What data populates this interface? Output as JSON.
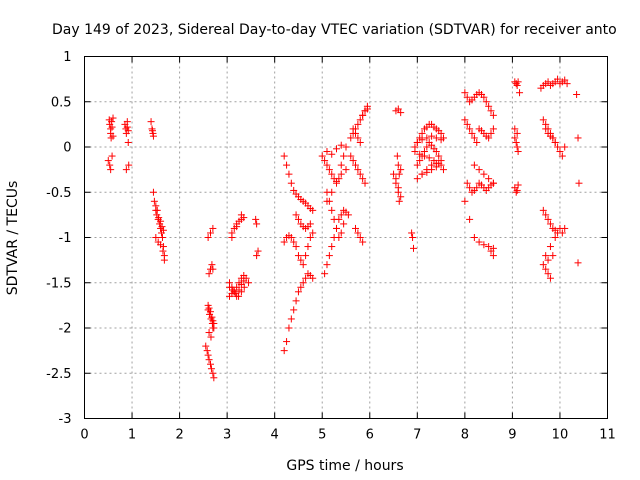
{
  "chart_data": {
    "type": "scatter",
    "title": "Day 149 of 2023, Sidereal Day-to-day VTEC variation (SDTVAR) for receiver anto",
    "xlabel": "GPS time / hours",
    "ylabel": "SDTVAR / TECUs",
    "xlim": [
      0,
      11
    ],
    "ylim": [
      -3,
      1
    ],
    "xticks": [
      0,
      1,
      2,
      3,
      4,
      5,
      6,
      7,
      8,
      9,
      10,
      11
    ],
    "yticks": [
      -3,
      -2.5,
      -2,
      -1.5,
      -1,
      -0.5,
      0,
      0.5,
      1
    ],
    "grid": true,
    "marker": "+",
    "color": "#ff0000",
    "series": [
      {
        "name": "SDTVAR",
        "x": [
          0.52,
          0.53,
          0.55,
          0.55,
          0.56,
          0.57,
          0.58,
          0.6,
          0.6,
          0.5,
          0.53,
          0.55,
          0.58,
          0.85,
          0.87,
          0.88,
          0.9,
          0.92,
          0.93,
          0.88,
          0.9,
          0.92,
          1.4,
          1.42,
          1.44,
          1.43,
          1.45,
          1.45,
          1.47,
          1.5,
          1.52,
          1.55,
          1.58,
          1.6,
          1.62,
          1.64,
          1.66,
          1.68,
          1.5,
          1.53,
          1.56,
          1.6,
          1.63,
          1.66,
          1.68,
          1.5,
          1.55,
          1.6,
          1.65,
          2.55,
          2.58,
          2.6,
          2.62,
          2.65,
          2.67,
          2.7,
          2.72,
          2.6,
          2.63,
          2.66,
          2.69,
          2.72,
          2.6,
          2.62,
          2.65,
          2.68,
          2.7,
          2.62,
          2.65,
          2.68,
          2.7,
          2.6,
          2.65,
          2.7,
          2.62,
          2.66,
          2.7,
          2.72,
          3.05,
          3.1,
          3.15,
          3.2,
          3.25,
          3.3,
          3.35,
          3.4,
          3.45,
          3.1,
          3.15,
          3.2,
          3.25,
          3.3,
          3.35,
          3.05,
          3.1,
          3.15,
          3.2,
          3.25,
          3.3,
          3.35,
          3.1,
          3.2,
          3.3,
          3.05,
          3.12,
          3.18,
          3.24,
          3.3,
          3.36,
          3.6,
          3.62,
          3.65,
          3.62,
          4.2,
          4.25,
          4.3,
          4.35,
          4.4,
          4.45,
          4.5,
          4.55,
          4.6,
          4.65,
          4.7,
          4.75,
          4.8,
          4.2,
          4.25,
          4.3,
          4.35,
          4.4,
          4.45,
          4.5,
          4.55,
          4.6,
          4.65,
          4.7,
          4.75,
          4.8,
          4.2,
          4.25,
          4.3,
          4.35,
          4.4,
          4.45,
          4.5,
          4.55,
          4.6,
          4.65,
          4.7,
          4.75,
          4.8,
          4.45,
          4.5,
          4.55,
          4.6,
          4.65,
          4.7,
          4.75,
          5.0,
          5.05,
          5.1,
          5.15,
          5.2,
          5.25,
          5.3,
          5.35,
          5.4,
          5.45,
          5.5,
          5.1,
          5.15,
          5.2,
          5.25,
          5.3,
          5.35,
          5.4,
          5.45,
          5.05,
          5.1,
          5.15,
          5.2,
          5.25,
          5.3,
          5.35,
          5.4,
          5.45,
          5.5,
          5.55,
          5.1,
          5.2,
          5.3,
          5.4,
          5.5,
          5.1,
          5.2,
          5.3,
          5.4,
          5.5,
          5.6,
          5.65,
          5.7,
          5.75,
          5.8,
          5.85,
          5.9,
          5.95,
          5.6,
          5.65,
          5.7,
          5.75,
          5.8,
          5.85,
          5.9,
          5.65,
          5.7,
          5.75,
          5.8,
          5.7,
          5.75,
          5.8,
          5.85,
          5.85,
          5.9,
          5.95,
          6.5,
          6.55,
          6.6,
          6.62,
          6.65,
          6.55,
          6.6,
          6.65,
          6.58,
          6.6,
          6.62,
          6.55,
          6.6,
          6.65,
          6.88,
          6.9,
          6.92,
          6.95,
          7.0,
          7.05,
          7.1,
          7.15,
          7.2,
          7.25,
          7.3,
          7.35,
          7.4,
          7.45,
          7.5,
          7.55,
          7.0,
          7.05,
          7.1,
          7.15,
          7.2,
          7.25,
          7.3,
          7.35,
          7.4,
          7.45,
          7.5,
          7.0,
          7.1,
          7.2,
          7.3,
          7.4,
          7.5,
          7.0,
          7.1,
          7.2,
          7.3,
          7.4,
          7.5,
          6.95,
          7.05,
          7.15,
          7.25,
          7.35,
          7.45,
          7.55,
          7.1,
          7.2,
          7.3,
          7.4,
          8.0,
          8.05,
          8.1,
          8.15,
          8.2,
          8.25,
          8.3,
          8.35,
          8.4,
          8.45,
          8.5,
          8.55,
          8.6,
          8.0,
          8.05,
          8.1,
          8.15,
          8.2,
          8.25,
          8.3,
          8.35,
          8.4,
          8.45,
          8.5,
          8.55,
          8.6,
          8.05,
          8.1,
          8.15,
          8.2,
          8.25,
          8.3,
          8.35,
          8.4,
          8.45,
          8.5,
          8.55,
          8.6,
          8.0,
          8.1,
          8.2,
          8.3,
          8.4,
          8.5,
          8.6,
          8.2,
          8.3,
          8.4,
          8.5,
          8.6,
          8.55,
          8.6,
          9.05,
          9.08,
          9.1,
          9.12,
          9.15,
          9.05,
          9.08,
          9.1,
          9.12,
          9.05,
          9.08,
          9.1,
          9.12,
          9.05,
          9.1,
          9.6,
          9.65,
          9.7,
          9.75,
          9.8,
          9.85,
          9.9,
          9.95,
          10.0,
          10.05,
          10.1,
          10.15,
          9.65,
          9.7,
          9.75,
          9.8,
          9.85,
          9.9,
          9.95,
          10.0,
          10.05,
          10.1,
          9.65,
          9.7,
          9.75,
          9.8,
          9.85,
          9.9,
          9.95,
          10.0,
          10.05,
          10.1,
          9.65,
          9.7,
          9.75,
          9.8,
          9.85,
          9.9,
          9.7,
          9.75,
          9.8,
          9.85,
          9.9,
          9.7,
          9.75,
          9.8,
          10.35,
          10.38,
          10.4,
          10.38
        ],
        "y": [
          0.3,
          0.25,
          0.2,
          0.15,
          0.1,
          0.28,
          0.22,
          0.12,
          0.32,
          -0.15,
          -0.2,
          -0.25,
          -0.1,
          0.25,
          0.2,
          0.15,
          0.28,
          0.05,
          -0.2,
          -0.25,
          0.22,
          0.18,
          0.28,
          0.2,
          0.15,
          0.18,
          0.12,
          -0.5,
          -0.6,
          -0.7,
          -0.75,
          -0.8,
          -0.85,
          -0.9,
          -0.95,
          -1.0,
          -1.1,
          -1.25,
          -0.65,
          -0.7,
          -0.78,
          -0.82,
          -0.88,
          -0.92,
          -1.2,
          -1.0,
          -1.05,
          -1.08,
          -1.15,
          -2.2,
          -2.25,
          -2.3,
          -2.35,
          -2.4,
          -2.45,
          -2.5,
          -2.55,
          -1.8,
          -1.85,
          -1.9,
          -1.95,
          -2.0,
          -1.75,
          -1.78,
          -1.82,
          -1.88,
          -1.92,
          -1.4,
          -1.35,
          -1.3,
          -1.35,
          -1.0,
          -0.95,
          -0.9,
          -2.05,
          -2.1,
          -2.0,
          -1.95,
          -1.5,
          -1.55,
          -1.6,
          -1.65,
          -1.58,
          -1.52,
          -1.48,
          -1.45,
          -1.5,
          -0.95,
          -0.9,
          -0.85,
          -0.82,
          -0.8,
          -0.78,
          -1.65,
          -1.62,
          -1.6,
          -1.55,
          -1.5,
          -1.45,
          -1.42,
          -1.0,
          -0.88,
          -0.75,
          -1.55,
          -1.58,
          -1.62,
          -1.65,
          -1.6,
          -1.55,
          -0.8,
          -0.85,
          -1.15,
          -1.2,
          -0.1,
          -0.2,
          -0.3,
          -0.4,
          -0.48,
          -0.52,
          -0.55,
          -0.58,
          -0.6,
          -0.62,
          -0.65,
          -0.68,
          -0.7,
          -1.05,
          -1.0,
          -0.98,
          -1.0,
          -1.05,
          -1.1,
          -1.2,
          -1.25,
          -1.3,
          -1.2,
          -1.1,
          -1.0,
          -0.95,
          -2.25,
          -2.15,
          -2.0,
          -1.9,
          -1.8,
          -1.7,
          -1.6,
          -1.55,
          -1.5,
          -1.45,
          -1.4,
          -1.42,
          -1.45,
          -0.75,
          -0.8,
          -0.85,
          -0.88,
          -0.9,
          -0.88,
          -0.85,
          -0.1,
          -0.15,
          -0.2,
          -0.25,
          -0.3,
          -0.35,
          -0.38,
          -0.35,
          -0.2,
          -0.1,
          0.0,
          -0.5,
          -0.6,
          -0.7,
          -0.8,
          -0.9,
          -1.0,
          -0.95,
          -0.85,
          -1.4,
          -1.3,
          -1.2,
          -1.1,
          -1.0,
          -0.9,
          -0.8,
          -0.75,
          -0.7,
          -0.72,
          -0.75,
          -0.05,
          -0.08,
          -0.02,
          0.02,
          0.0,
          -0.6,
          -0.5,
          -0.4,
          -0.3,
          -0.25,
          0.1,
          0.15,
          0.2,
          0.25,
          0.3,
          0.35,
          0.4,
          0.45,
          -0.1,
          -0.15,
          -0.2,
          -0.25,
          -0.3,
          -0.35,
          -0.4,
          0.2,
          0.15,
          0.1,
          0.05,
          -0.9,
          -0.95,
          -1.0,
          -1.05,
          0.35,
          0.4,
          0.42,
          -0.3,
          -0.4,
          -0.5,
          -0.6,
          -0.55,
          0.4,
          0.42,
          0.38,
          -0.1,
          -0.2,
          -0.3,
          -0.35,
          -0.45,
          -0.25,
          -0.95,
          -1.0,
          -1.12,
          0.0,
          0.05,
          0.1,
          0.15,
          0.2,
          0.22,
          0.25,
          0.25,
          0.22,
          0.2,
          0.18,
          0.15,
          0.1,
          -0.2,
          -0.15,
          -0.1,
          -0.05,
          0.0,
          0.05,
          0.02,
          -0.02,
          -0.05,
          -0.1,
          -0.15,
          -0.35,
          -0.3,
          -0.25,
          -0.2,
          -0.18,
          -0.2,
          0.05,
          0.08,
          0.1,
          0.12,
          0.1,
          0.08,
          -0.05,
          -0.08,
          -0.1,
          -0.12,
          -0.15,
          -0.18,
          -0.25,
          -0.3,
          -0.28,
          -0.25,
          -0.22,
          0.6,
          0.55,
          0.5,
          0.52,
          0.55,
          0.58,
          0.6,
          0.58,
          0.55,
          0.5,
          0.45,
          0.4,
          0.35,
          0.3,
          0.25,
          0.2,
          0.15,
          0.1,
          0.05,
          0.2,
          0.18,
          0.15,
          0.12,
          0.1,
          0.15,
          0.2,
          -0.4,
          -0.45,
          -0.5,
          -0.48,
          -0.45,
          -0.4,
          -0.42,
          -0.45,
          -0.48,
          -0.45,
          -0.42,
          -0.4,
          -0.6,
          -0.8,
          -1.0,
          -1.05,
          -1.08,
          -1.1,
          -1.12,
          -0.2,
          -0.25,
          -0.3,
          -0.35,
          -0.4,
          -1.15,
          -1.2,
          0.72,
          0.7,
          0.68,
          0.72,
          0.6,
          0.1,
          0.05,
          0.0,
          -0.05,
          -0.45,
          -0.5,
          -0.48,
          -0.42,
          0.2,
          0.15,
          0.65,
          0.68,
          0.7,
          0.72,
          0.68,
          0.7,
          0.72,
          0.75,
          0.7,
          0.72,
          0.74,
          0.7,
          0.3,
          0.25,
          0.2,
          0.15,
          0.1,
          0.05,
          0.0,
          -0.05,
          -0.1,
          0.0,
          -0.7,
          -0.75,
          -0.8,
          -0.85,
          -0.9,
          -0.92,
          -0.95,
          -0.9,
          -0.95,
          -0.9,
          -1.3,
          -1.35,
          -1.4,
          -1.45,
          -1.2,
          -1.0,
          0.2,
          0.15,
          0.12,
          0.1,
          0.05,
          -1.2,
          -1.25,
          -1.1,
          0.58,
          0.1,
          -0.4,
          -1.28
        ]
      }
    ]
  }
}
